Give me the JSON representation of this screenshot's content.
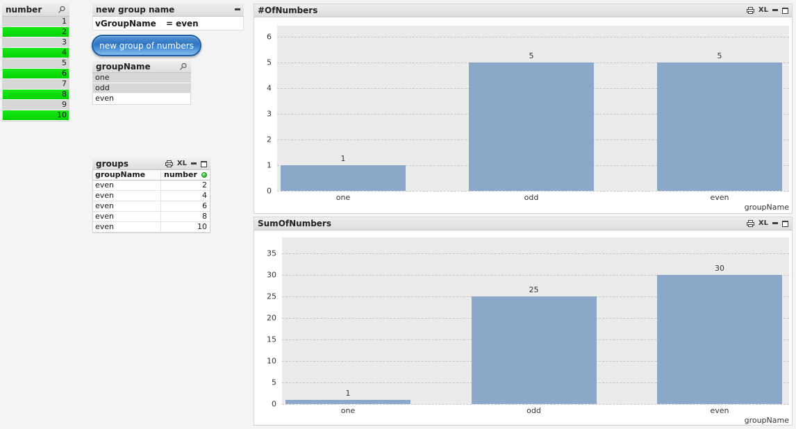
{
  "colors": {
    "bar": "#8ca8c9",
    "plot_bg": "#ebebeb",
    "selected_green": "#00d400",
    "excluded_gray": "#d7d7d7",
    "page_bg": "#f4f4f4"
  },
  "caption_icons": {
    "excel_label": "XL"
  },
  "number_listbox": {
    "title": "number",
    "items": [
      {
        "value": "1",
        "state": "excluded"
      },
      {
        "value": "2",
        "state": "selected"
      },
      {
        "value": "3",
        "state": "excluded"
      },
      {
        "value": "4",
        "state": "selected"
      },
      {
        "value": "5",
        "state": "excluded"
      },
      {
        "value": "6",
        "state": "selected"
      },
      {
        "value": "7",
        "state": "excluded"
      },
      {
        "value": "8",
        "state": "selected"
      },
      {
        "value": "9",
        "state": "excluded"
      },
      {
        "value": "10",
        "state": "selected"
      }
    ]
  },
  "new_group_panel": {
    "title": "new group name",
    "field_label": "vGroupName",
    "operator": "=",
    "field_value": "even"
  },
  "button": {
    "label": "new group of numbers"
  },
  "groupname_listbox": {
    "title": "groupName",
    "items": [
      {
        "value": "one",
        "state": "excluded"
      },
      {
        "value": "odd",
        "state": "excluded"
      },
      {
        "value": "even",
        "state": "optional"
      }
    ]
  },
  "groups_table": {
    "title": "groups",
    "columns": [
      "groupName",
      "number"
    ],
    "rows": [
      [
        "even",
        "2"
      ],
      [
        "even",
        "4"
      ],
      [
        "even",
        "6"
      ],
      [
        "even",
        "8"
      ],
      [
        "even",
        "10"
      ]
    ]
  },
  "chart_data": [
    {
      "type": "bar",
      "title": "#OfNumbers",
      "categories": [
        "one",
        "odd",
        "even"
      ],
      "values": [
        1,
        5,
        5
      ],
      "bar_labels": [
        "1",
        "5",
        "5"
      ],
      "xlabel": "groupName",
      "ylabel": "",
      "ylim": [
        0,
        6.43
      ],
      "yticks": [
        0,
        1,
        2,
        3,
        4,
        5,
        6
      ],
      "grid": true,
      "legend": false,
      "bar_color": "#8ca8c9"
    },
    {
      "type": "bar",
      "title": "SumOfNumbers",
      "categories": [
        "one",
        "odd",
        "even"
      ],
      "values": [
        1,
        25,
        30
      ],
      "bar_labels": [
        "1",
        "25",
        "30"
      ],
      "xlabel": "groupName",
      "ylabel": "",
      "ylim": [
        0,
        38.7
      ],
      "yticks": [
        0,
        5,
        10,
        15,
        20,
        25,
        30,
        35
      ],
      "grid": true,
      "legend": false,
      "bar_color": "#8ca8c9"
    }
  ]
}
